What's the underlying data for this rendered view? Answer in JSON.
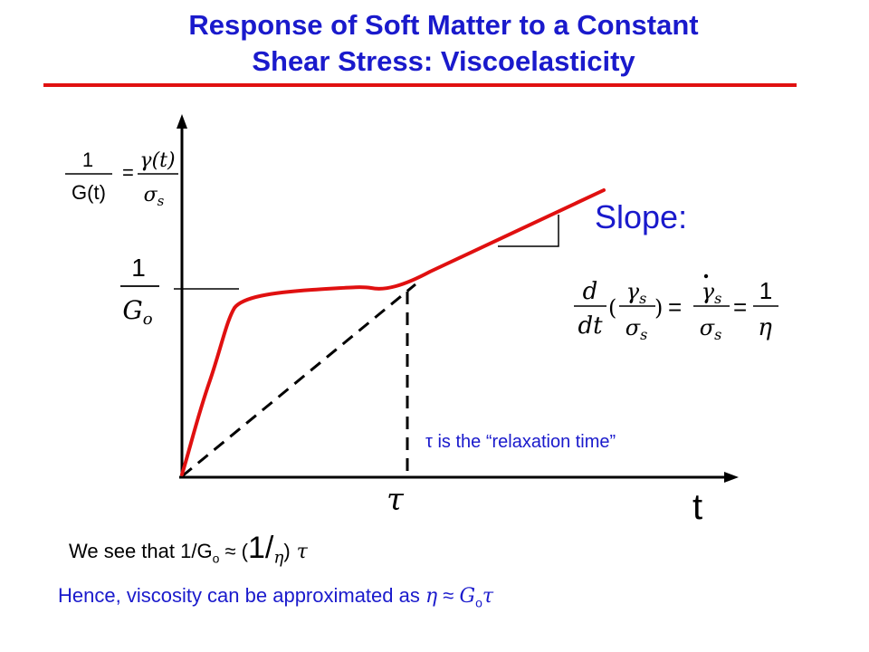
{
  "title": {
    "line1": "Response of Soft Matter to a Constant",
    "line2": "Shear Stress: Viscoelasticity"
  },
  "y_axis_label": {
    "lhs_num": "1",
    "lhs_den": "G(t)",
    "eq": "=",
    "rhs_num": "γ(t)",
    "rhs_den": "σ",
    "rhs_den_sub": "s"
  },
  "y_marker": {
    "num": "1",
    "den": "G",
    "den_sub": "o"
  },
  "slope": {
    "label": "Slope:",
    "d": "d",
    "dt": "dt",
    "gamma": "γ",
    "sigma": "σ",
    "sub": "s",
    "eq": "=",
    "one": "1",
    "eta": "η"
  },
  "relaxation_note": "τ is the “relaxation time”",
  "x_axis": {
    "tau_tick": "τ",
    "label": "t"
  },
  "we_see": {
    "prefix": "We see that 1/G",
    "sub": "o",
    "approx": " ≈ (",
    "big_one_slash": "1/",
    "eta": "η",
    "close": ")",
    "tau": " τ"
  },
  "hence": {
    "prefix": "Hence, viscosity can be approximated as ",
    "eta": "η",
    "approx": " ≈ ",
    "g": "G",
    "sub": "o",
    "tau": "τ"
  },
  "colors": {
    "title": "#1a1acc",
    "rule": "#e01010",
    "curve": "#e01010",
    "text_blue": "#1a1acc",
    "axis": "#000000"
  }
}
